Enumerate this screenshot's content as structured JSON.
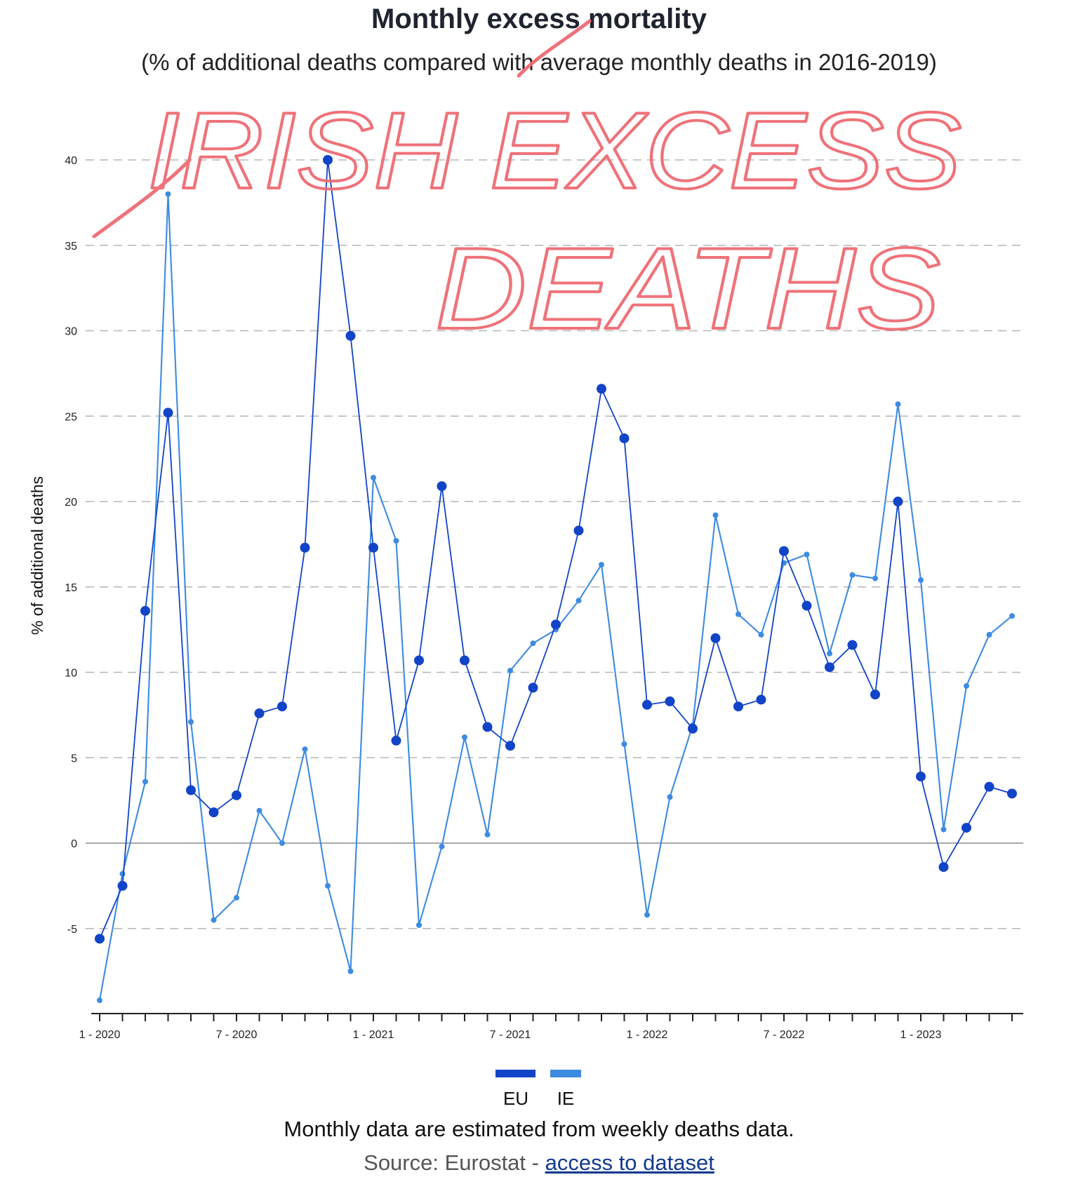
{
  "chart_data": {
    "type": "line",
    "title": "Monthly excess mortality",
    "subtitle": "(% of additional deaths compared with average monthly deaths in 2016-2019)",
    "ylabel": "% of additional deaths",
    "ylim": [
      -10,
      40
    ],
    "yticks": [
      40,
      35,
      30,
      25,
      20,
      15,
      10,
      5,
      0,
      -5
    ],
    "x_tick_labels": [
      "1 - 2020",
      "7 - 2020",
      "1 - 2021",
      "7 - 2021",
      "1 - 2022",
      "7 - 2022",
      "1 - 2023"
    ],
    "x_tick_label_indices": [
      0,
      6,
      12,
      18,
      24,
      30,
      36
    ],
    "series": [
      {
        "name": "EU",
        "color": "#1244c8",
        "values": [
          -5.6,
          -2.5,
          13.6,
          25.2,
          3.1,
          1.8,
          2.8,
          7.6,
          8.0,
          17.3,
          40.0,
          29.7,
          17.3,
          6.0,
          10.7,
          20.9,
          10.7,
          6.8,
          5.7,
          9.1,
          12.8,
          18.3,
          26.6,
          23.7,
          8.1,
          8.3,
          6.7,
          12.0,
          8.0,
          8.4,
          17.1,
          13.9,
          10.3,
          11.6,
          8.7,
          20.0,
          3.9,
          -1.4,
          0.9,
          3.3,
          2.9
        ]
      },
      {
        "name": "IE",
        "color": "#3d8be0",
        "values": [
          -9.2,
          -1.8,
          3.6,
          38.0,
          7.1,
          -4.5,
          -3.2,
          1.9,
          0.0,
          5.5,
          -2.5,
          -7.5,
          21.4,
          17.7,
          -4.8,
          -0.2,
          6.2,
          0.5,
          10.1,
          11.7,
          12.5,
          14.2,
          16.3,
          5.8,
          -4.2,
          2.7,
          6.9,
          19.2,
          13.4,
          12.2,
          16.4,
          16.9,
          11.1,
          15.7,
          15.5,
          25.7,
          15.4,
          0.8,
          9.2,
          12.2,
          13.3
        ]
      }
    ],
    "annotation": {
      "line1": "IRISH EXCESS",
      "line2": "DEATHS",
      "color": "#ef6b72"
    },
    "footer": {
      "note": "Monthly data are estimated from weekly deaths data.",
      "source_prefix": "Source: Eurostat - ",
      "source_link": "access to dataset"
    },
    "grid": true,
    "legend_position": "bottom-center"
  }
}
